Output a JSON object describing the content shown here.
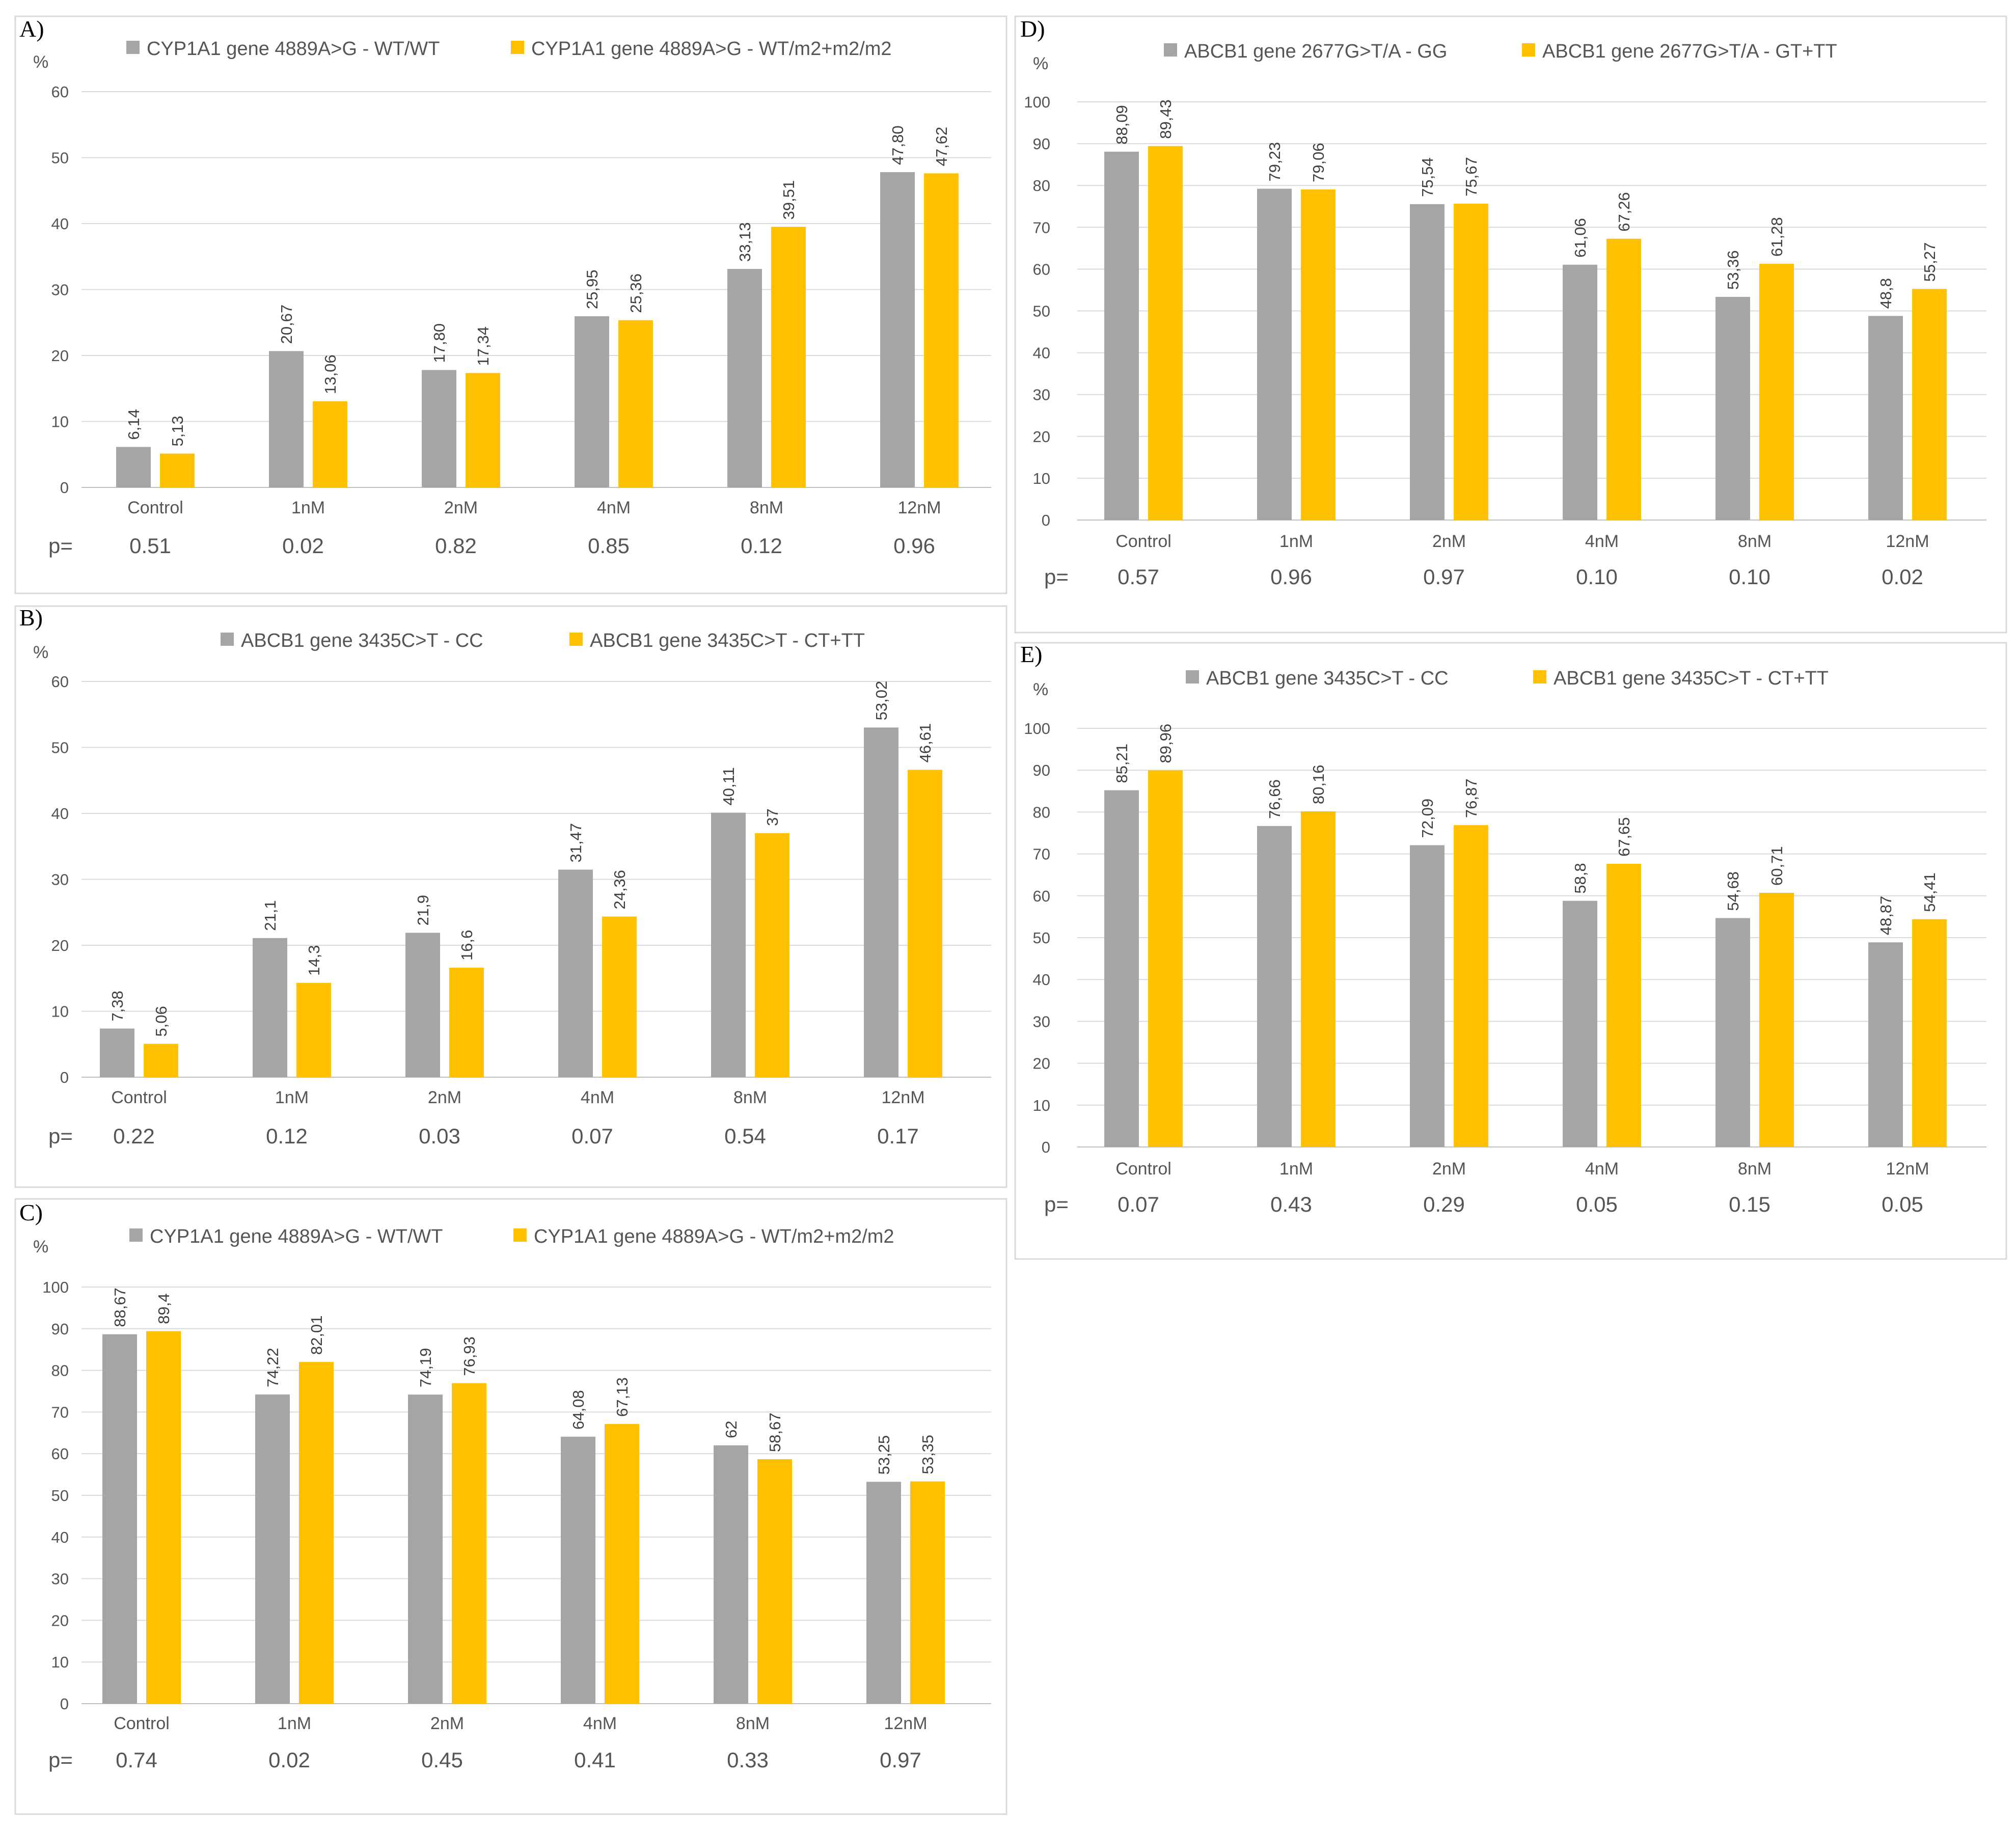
{
  "figure": {
    "background": "#ffffff",
    "series_colors": [
      "#a5a5a5",
      "#ffc000"
    ]
  },
  "chart_data": [
    {
      "panel": "A)",
      "type": "bar",
      "ylabel": "%",
      "ylim": [
        0,
        60
      ],
      "yticks": [
        0,
        10,
        20,
        30,
        40,
        50,
        60
      ],
      "categories": [
        "Control",
        "1nM",
        "2nM",
        "4nM",
        "8nM",
        "12nM"
      ],
      "series": [
        {
          "name": "CYP1A1 gene 4889A>G - WT/WT",
          "color": "#a5a5a5",
          "values": [
            6.14,
            20.67,
            17.8,
            25.95,
            33.13,
            47.8
          ],
          "labels": [
            "6,14",
            "20,67",
            "17,80",
            "25,95",
            "33,13",
            "47,80"
          ]
        },
        {
          "name": "CYP1A1 gene 4889A>G - WT/m2+m2/m2",
          "color": "#ffc000",
          "values": [
            5.13,
            13.06,
            17.34,
            25.36,
            39.51,
            47.62
          ],
          "labels": [
            "5,13",
            "13,06",
            "17,34",
            "25,36",
            "39,51",
            "47,62"
          ]
        }
      ],
      "p_label": "p=",
      "p_values": [
        "0.51",
        "0.02",
        "0.82",
        "0.85",
        "0.12",
        "0.96"
      ]
    },
    {
      "panel": "B)",
      "type": "bar",
      "ylabel": "%",
      "ylim": [
        0,
        60
      ],
      "yticks": [
        0,
        10,
        20,
        30,
        40,
        50,
        60
      ],
      "categories": [
        "Control",
        "1nM",
        "2nM",
        "4nM",
        "8nM",
        "12nM"
      ],
      "series": [
        {
          "name": "ABCB1 gene 3435C>T - CC",
          "color": "#a5a5a5",
          "values": [
            7.38,
            21.1,
            21.9,
            31.47,
            40.11,
            53.02
          ],
          "labels": [
            "7,38",
            "21,1",
            "21,9",
            "31,47",
            "40,11",
            "53,02"
          ]
        },
        {
          "name": "ABCB1 gene 3435C>T - CT+TT",
          "color": "#ffc000",
          "values": [
            5.06,
            14.3,
            16.6,
            24.36,
            37,
            46.61
          ],
          "labels": [
            "5,06",
            "14,3",
            "16,6",
            "24,36",
            "37",
            "46,61"
          ]
        }
      ],
      "p_label": "p=",
      "p_values": [
        "0.22",
        "0.12",
        "0.03",
        "0.07",
        "0.54",
        "0.17"
      ]
    },
    {
      "panel": "C)",
      "type": "bar",
      "ylabel": "%",
      "ylim": [
        0,
        100
      ],
      "yticks": [
        0,
        10,
        20,
        30,
        40,
        50,
        60,
        70,
        80,
        90,
        100
      ],
      "categories": [
        "Control",
        "1nM",
        "2nM",
        "4nM",
        "8nM",
        "12nM"
      ],
      "series": [
        {
          "name": "CYP1A1 gene 4889A>G - WT/WT",
          "color": "#a5a5a5",
          "values": [
            88.67,
            74.22,
            74.19,
            64.08,
            62,
            53.25
          ],
          "labels": [
            "88,67",
            "74,22",
            "74,19",
            "64,08",
            "62",
            "53,25"
          ]
        },
        {
          "name": "CYP1A1 gene 4889A>G - WT/m2+m2/m2",
          "color": "#ffc000",
          "values": [
            89.4,
            82.01,
            76.93,
            67.13,
            58.67,
            53.35
          ],
          "labels": [
            "89,4",
            "82,01",
            "76,93",
            "67,13",
            "58,67",
            "53,35"
          ]
        }
      ],
      "p_label": "p=",
      "p_values": [
        "0.74",
        "0.02",
        "0.45",
        "0.41",
        "0.33",
        "0.97"
      ]
    },
    {
      "panel": "D)",
      "type": "bar",
      "ylabel": "%",
      "ylim": [
        0,
        100
      ],
      "yticks": [
        0,
        10,
        20,
        30,
        40,
        50,
        60,
        70,
        80,
        90,
        100
      ],
      "categories": [
        "Control",
        "1nM",
        "2nM",
        "4nM",
        "8nM",
        "12nM"
      ],
      "series": [
        {
          "name": "ABCB1 gene 2677G>T/A - GG",
          "color": "#a5a5a5",
          "values": [
            88.09,
            79.23,
            75.54,
            61.06,
            53.36,
            48.8
          ],
          "labels": [
            "88,09",
            "79,23",
            "75,54",
            "61,06",
            "53,36",
            "48,8"
          ]
        },
        {
          "name": "ABCB1 gene 2677G>T/A - GT+TT",
          "color": "#ffc000",
          "values": [
            89.43,
            79.06,
            75.67,
            67.26,
            61.28,
            55.27
          ],
          "labels": [
            "89,43",
            "79,06",
            "75,67",
            "67,26",
            "61,28",
            "55,27"
          ]
        }
      ],
      "p_label": "p=",
      "p_values": [
        "0.57",
        "0.96",
        "0.97",
        "0.10",
        "0.10",
        "0.02"
      ]
    },
    {
      "panel": "E)",
      "type": "bar",
      "ylabel": "%",
      "ylim": [
        0,
        100
      ],
      "yticks": [
        0,
        10,
        20,
        30,
        40,
        50,
        60,
        70,
        80,
        90,
        100
      ],
      "categories": [
        "Control",
        "1nM",
        "2nM",
        "4nM",
        "8nM",
        "12nM"
      ],
      "series": [
        {
          "name": "ABCB1 gene 3435C>T - CC",
          "color": "#a5a5a5",
          "values": [
            85.21,
            76.66,
            72.09,
            58.8,
            54.68,
            48.87
          ],
          "labels": [
            "85,21",
            "76,66",
            "72,09",
            "58,8",
            "54,68",
            "48,87"
          ]
        },
        {
          "name": "ABCB1 gene 3435C>T - CT+TT",
          "color": "#ffc000",
          "values": [
            89.96,
            80.16,
            76.87,
            67.65,
            60.71,
            54.41
          ],
          "labels": [
            "89,96",
            "80,16",
            "76,87",
            "67,65",
            "60,71",
            "54,41"
          ]
        }
      ],
      "p_label": "p=",
      "p_values": [
        "0.07",
        "0.43",
        "0.29",
        "0.05",
        "0.15",
        "0.05"
      ]
    }
  ]
}
